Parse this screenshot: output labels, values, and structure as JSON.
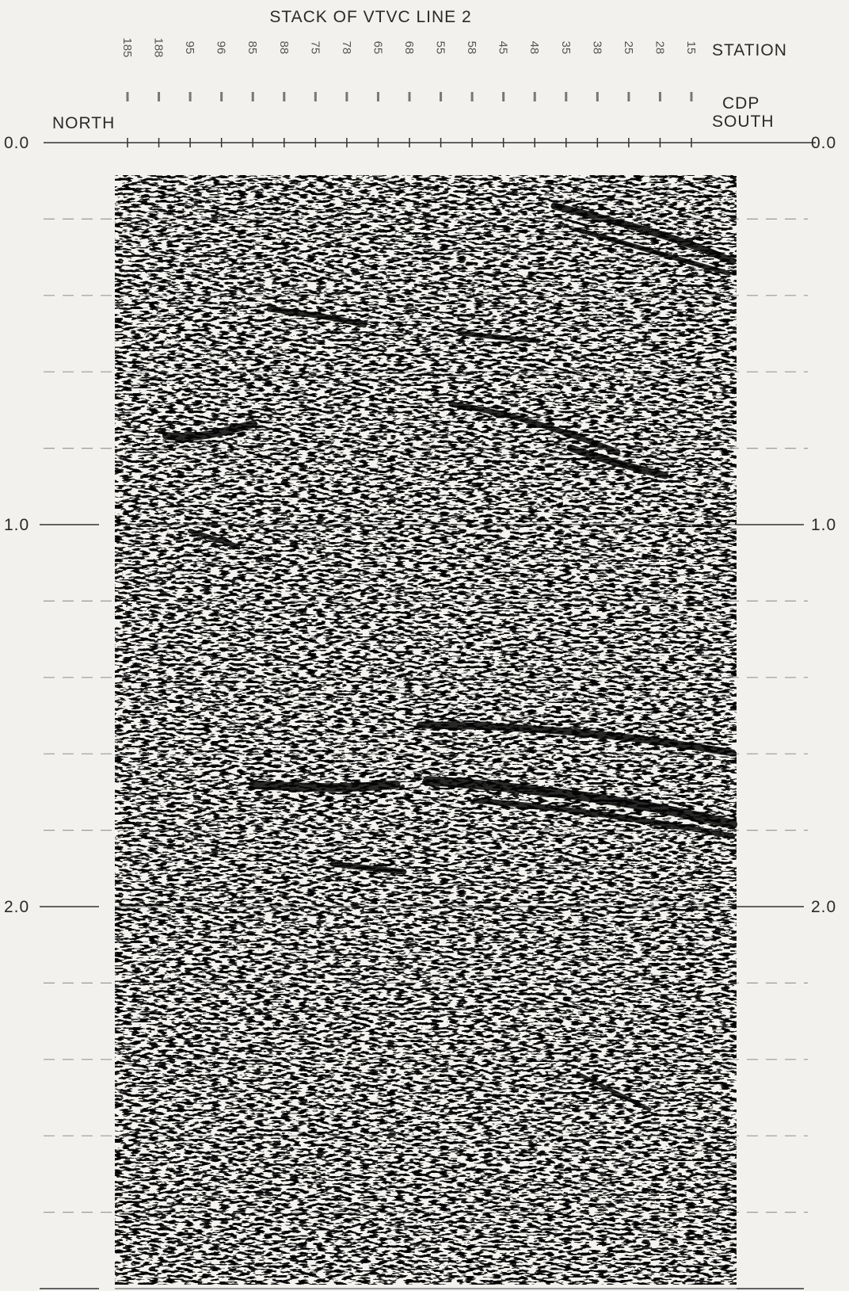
{
  "title": "STACK OF VTVC LINE 2",
  "stations": [
    "185",
    "188",
    "95",
    "96",
    "85",
    "88",
    "75",
    "78",
    "65",
    "68",
    "55",
    "58",
    "45",
    "48",
    "35",
    "38",
    "25",
    "28",
    "15"
  ],
  "station_label": "STATION",
  "cdp_label": "CDP",
  "north_label": "NORTH",
  "south_label": "SOUTH",
  "time_labels": [
    "0.0",
    "1.0",
    "2.0"
  ]
}
